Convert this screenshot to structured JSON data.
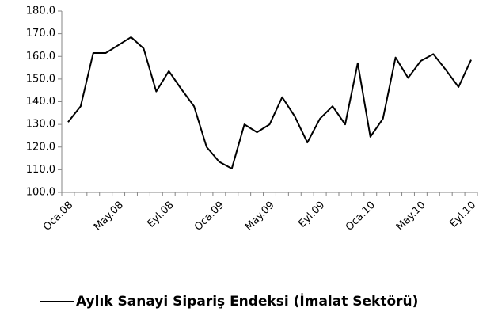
{
  "chart_data": {
    "type": "line",
    "categories": [
      "Oca.08",
      null,
      null,
      null,
      "May.08",
      null,
      null,
      null,
      "Eyl.08",
      null,
      null,
      null,
      "Oca.09",
      null,
      null,
      null,
      "May.09",
      null,
      null,
      null,
      "Eyl.09",
      null,
      null,
      null,
      "Oca.10",
      null,
      null,
      null,
      "May.10",
      null,
      null,
      null,
      "Eyl.10"
    ],
    "series": [
      {
        "name": "Aylık Sanayi Sipariş Endeksi (İmalat Sektörü)",
        "color": "#000000",
        "values": [
          131,
          138,
          161.5,
          161.5,
          165,
          168.5,
          163.5,
          144.5,
          153.5,
          145.5,
          138,
          120,
          113.5,
          110.5,
          130,
          126.5,
          130,
          142,
          133.5,
          122,
          132.5,
          138,
          130,
          157,
          124.5,
          132.5,
          159.5,
          150.5,
          158,
          161,
          154,
          146.5,
          158.5
        ]
      }
    ],
    "ylim": [
      100,
      180
    ],
    "yticks": [
      {
        "value": 100,
        "label": "100.0"
      },
      {
        "value": 110,
        "label": "110.0"
      },
      {
        "value": 120,
        "label": "120.0"
      },
      {
        "value": 130,
        "label": "130.0"
      },
      {
        "value": 140,
        "label": "140.0"
      },
      {
        "value": 150,
        "label": "150.0"
      },
      {
        "value": 160,
        "label": "160.0"
      },
      {
        "value": 170,
        "label": "170.0"
      },
      {
        "value": 180,
        "label": "180.0"
      }
    ],
    "grid": false,
    "legend": "bottom"
  }
}
